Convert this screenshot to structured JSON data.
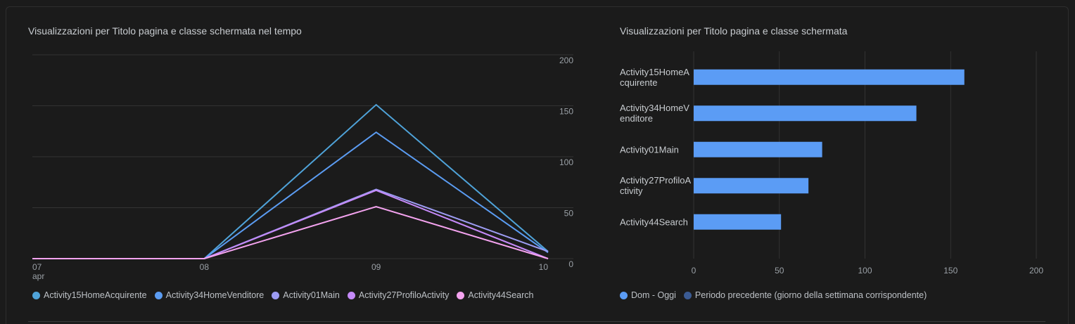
{
  "chart_data": [
    {
      "type": "line",
      "title": "Visualizzazioni per Titolo pagina e classe schermata nel tempo",
      "categories": [
        "07",
        "08",
        "09",
        "10"
      ],
      "x_period_label": "apr",
      "series": [
        {
          "name": "Activity15HomeAcquirente",
          "color": "#4fa3d9",
          "values": [
            0,
            0,
            151,
            7
          ]
        },
        {
          "name": "Activity34HomeVenditore",
          "color": "#5b9cf2",
          "values": [
            0,
            0,
            124,
            6
          ]
        },
        {
          "name": "Activity01Main",
          "color": "#9d9cf3",
          "values": [
            0,
            0,
            68,
            7
          ]
        },
        {
          "name": "Activity27ProfiloActivity",
          "color": "#c58af9",
          "values": [
            0,
            0,
            67,
            0
          ]
        },
        {
          "name": "Activity44Search",
          "color": "#f4a3ef",
          "values": [
            0,
            0,
            51,
            0
          ]
        }
      ],
      "ylim": [
        0,
        200
      ],
      "yticks": [
        0,
        50,
        100,
        150,
        200
      ],
      "grid": true,
      "y_axis_side": "right"
    },
    {
      "type": "hbar",
      "title": "Visualizzazioni per Titolo pagina e classe schermata",
      "categories": [
        "Activity15HomeAcquirente",
        "Activity34HomeVenditore",
        "Activity01Main",
        "Activity27ProfiloActivity",
        "Activity44Search"
      ],
      "series": [
        {
          "name": "Dom - Oggi",
          "color": "#5b9cf5",
          "values": [
            158,
            130,
            75,
            67,
            51
          ]
        },
        {
          "name": "Periodo precedente (giorno della settimana corrispondente)",
          "color": "#3b5b93",
          "values": [
            null,
            null,
            null,
            null,
            null
          ]
        }
      ],
      "xlim": [
        0,
        200
      ],
      "xticks": [
        0,
        50,
        100,
        150,
        200
      ],
      "grid": true
    }
  ]
}
